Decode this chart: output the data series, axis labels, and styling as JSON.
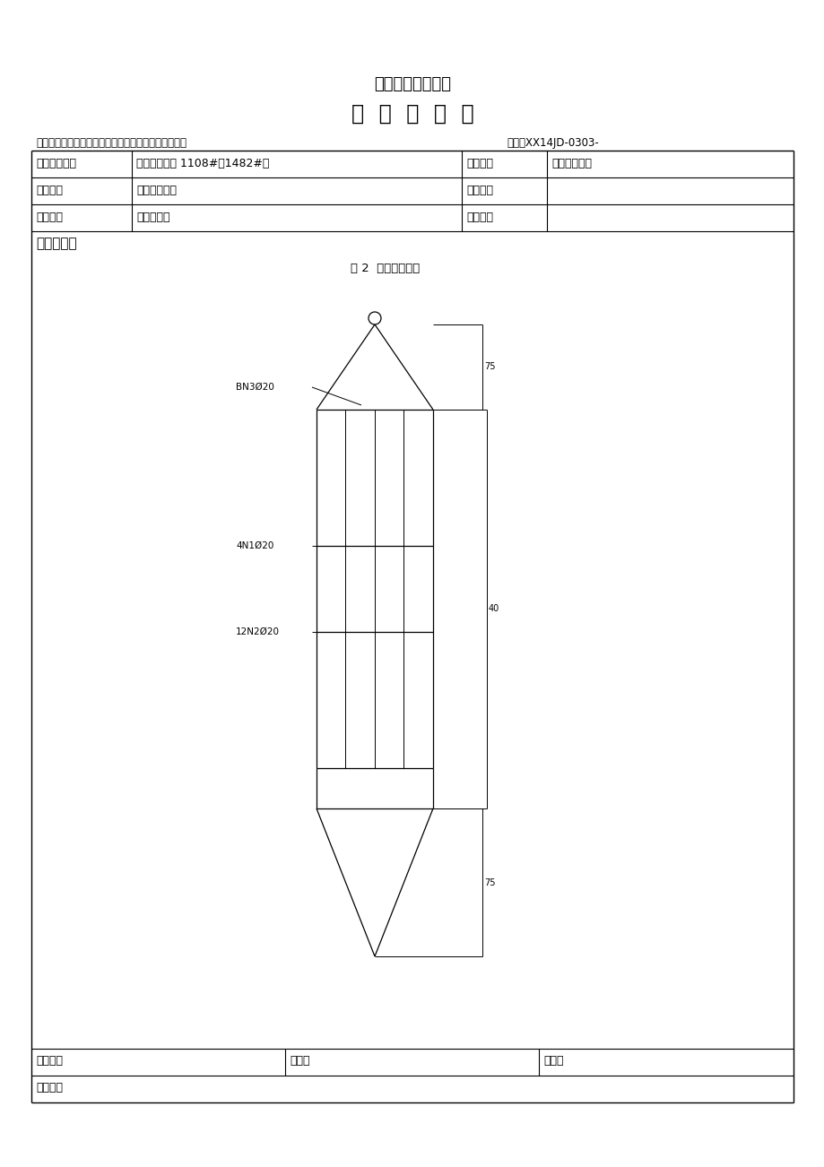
{
  "title1": "大西铁路客专工程",
  "title2": "技  术  交  底  书",
  "施工单位_label": "施工单位：中国路桥工程有限责任公司大西客专三经部",
  "编号_label": "编号：XX14JD-0303-",
  "table_rows": [
    [
      "单位工程名称",
      "渭洛河特大桥 1108#～1482#墩",
      "工程部位",
      "简支梁桩基础"
    ],
    [
      "编制单位",
      "三经部二工区",
      "接收单位",
      ""
    ],
    [
      "交底项目",
      "探孔器制作",
      "交底时间",
      ""
    ]
  ],
  "content_label": "交底内容：",
  "figure_title": "图 2  探孔器立面图",
  "label_BN3": "BN3Ø20",
  "label_4N1": "4N1Ø20",
  "label_12N2": "12N2Ø20",
  "dim_top": "75",
  "dim_mid": "40",
  "dim_bot": "75",
  "footer1": [
    "交底人：",
    "复核：",
    "审核："
  ],
  "footer2": "接收人：",
  "bg_color": "#ffffff",
  "line_color": "#000000"
}
